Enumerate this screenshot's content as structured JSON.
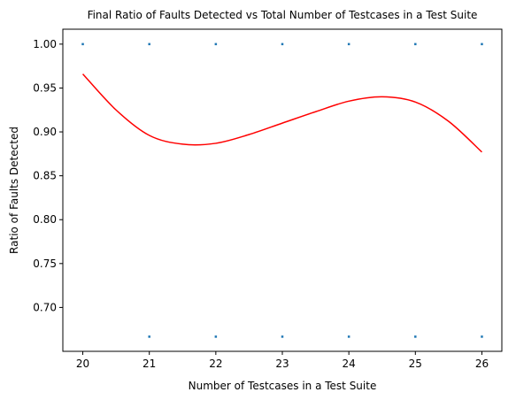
{
  "chart_data": {
    "type": "scatter",
    "title": "Final Ratio of Faults Detected vs Total Number of Testcases in a Test Suite",
    "xlabel": "Number of Testcases in a Test Suite",
    "ylabel": "Ratio of Faults Detected",
    "xlim": [
      19.7,
      26.3
    ],
    "ylim": [
      0.65,
      1.017
    ],
    "x_ticks": [
      20,
      21,
      22,
      23,
      24,
      25,
      26
    ],
    "x_tick_labels": [
      "20",
      "21",
      "22",
      "23",
      "24",
      "25",
      "26"
    ],
    "y_ticks": [
      0.7,
      0.75,
      0.8,
      0.85,
      0.9,
      0.95,
      1.0
    ],
    "y_tick_labels": [
      "0.70",
      "0.75",
      "0.80",
      "0.85",
      "0.90",
      "0.95",
      "1.00"
    ],
    "grid": false,
    "series": [
      {
        "kind": "scatter",
        "color": "#1f77b4",
        "points": [
          [
            20,
            1.0
          ],
          [
            21,
            1.0
          ],
          [
            21,
            0.6667
          ],
          [
            22,
            1.0
          ],
          [
            22,
            0.6667
          ],
          [
            23,
            1.0
          ],
          [
            23,
            0.6667
          ],
          [
            24,
            1.0
          ],
          [
            24,
            0.6667
          ],
          [
            25,
            1.0
          ],
          [
            25,
            0.6667
          ],
          [
            26,
            1.0
          ],
          [
            26,
            0.6667
          ]
        ]
      },
      {
        "kind": "line",
        "color": "#ff0000",
        "points": [
          [
            20,
            0.966
          ],
          [
            20.5,
            0.925
          ],
          [
            21,
            0.896
          ],
          [
            21.5,
            0.886
          ],
          [
            22,
            0.887
          ],
          [
            22.5,
            0.897
          ],
          [
            23,
            0.91
          ],
          [
            23.5,
            0.923
          ],
          [
            24,
            0.935
          ],
          [
            24.5,
            0.94
          ],
          [
            25,
            0.934
          ],
          [
            25.5,
            0.912
          ],
          [
            26,
            0.877
          ]
        ]
      }
    ]
  }
}
